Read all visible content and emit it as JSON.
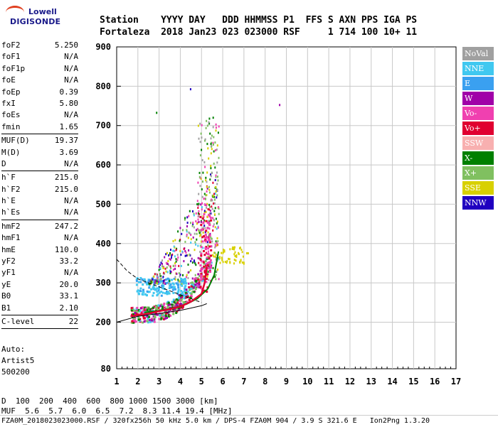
{
  "logo": {
    "brand": "Lowell",
    "product": "DIGISONDE"
  },
  "header": {
    "line1": "Station    YYYY DAY   DDD HHMMSS P1  FFS S AXN PPS IGA PS",
    "line2": "Fortaleza  2018 Jan23 023 023000 RSF     1 714 100 10+ 11"
  },
  "params": {
    "group1": [
      {
        "name": "foF2",
        "value": "5.250"
      },
      {
        "name": "foF1",
        "value": "N/A"
      },
      {
        "name": "foF1p",
        "value": "N/A"
      },
      {
        "name": "foE",
        "value": "N/A"
      },
      {
        "name": "foEp",
        "value": "0.39"
      },
      {
        "name": "fxI",
        "value": "5.80"
      },
      {
        "name": "foEs",
        "value": "N/A"
      },
      {
        "name": "fmin",
        "value": "1.65"
      }
    ],
    "group2": [
      {
        "name": "MUF(D)",
        "value": "19.37"
      },
      {
        "name": "M(D)",
        "value": "3.69"
      },
      {
        "name": "D",
        "value": "N/A"
      }
    ],
    "group3": [
      {
        "name": "h`F",
        "value": "215.0"
      },
      {
        "name": "h`F2",
        "value": "215.0"
      },
      {
        "name": "h`E",
        "value": "N/A"
      },
      {
        "name": "h`Es",
        "value": "N/A"
      }
    ],
    "group4": [
      {
        "name": "hmF2",
        "value": "247.2"
      },
      {
        "name": "hmF1",
        "value": "N/A"
      },
      {
        "name": "hmE",
        "value": "110.0"
      },
      {
        "name": "yF2",
        "value": "33.2"
      },
      {
        "name": "yF1",
        "value": "N/A"
      },
      {
        "name": "yE",
        "value": "20.0"
      },
      {
        "name": "B0",
        "value": "33.1"
      },
      {
        "name": "B1",
        "value": "2.10"
      }
    ],
    "group5": [
      {
        "name": "C-level",
        "value": "22"
      }
    ]
  },
  "auto": {
    "line1": "Auto:",
    "line2": "Artist5",
    "line3": "500200"
  },
  "legend": [
    {
      "label": "NoVal",
      "color": "#a0a0a0"
    },
    {
      "label": "NNE",
      "color": "#40c8f0"
    },
    {
      "label": "E",
      "color": "#3aa0f0"
    },
    {
      "label": "W",
      "color": "#a000a8"
    },
    {
      "label": "Vo-",
      "color": "#f040b0"
    },
    {
      "label": "Vo+",
      "color": "#e00030"
    },
    {
      "label": "SSW",
      "color": "#f8b0b0"
    },
    {
      "label": "X-",
      "color": "#008000"
    },
    {
      "label": "X+",
      "color": "#80c060"
    },
    {
      "label": "SSE",
      "color": "#d8d000"
    },
    {
      "label": "NNW",
      "color": "#2000c0"
    }
  ],
  "footer": {
    "row_d_label": "D",
    "row_d_values": "  100  200  400  600  800 1000 1500 3000 [km]",
    "row_muf_label": "MUF",
    "row_muf_values": "  5.6  5.7  6.0  6.5  7.2  8.3 11.4 19.4 [MHz]",
    "status": "FZA0M_2018023023000.RSF / 320fx256h 50 kHz 5.0 km / DPS-4 FZA0M 904 / 3.9 S 321.6 E   Ion2Png 1.3.20"
  },
  "chart_data": {
    "type": "scatter",
    "x_ticks": [
      1,
      2,
      3,
      4,
      5,
      6,
      7,
      8,
      9,
      10,
      11,
      12,
      13,
      14,
      15,
      16,
      17
    ],
    "y_ticks": [
      80,
      200,
      300,
      400,
      500,
      600,
      700,
      800,
      900
    ],
    "xlim": [
      1,
      17
    ],
    "ylim": [
      80,
      900
    ],
    "grid": true,
    "legend_position": "right",
    "profile_curve": {
      "x": [
        1.0,
        2.0,
        3.0,
        4.0,
        4.5,
        5.0,
        5.25
      ],
      "y": [
        200,
        215,
        222,
        230,
        236,
        242,
        247.2
      ]
    },
    "extrapolated_dashed": {
      "x": [
        1.0,
        1.5,
        2.0,
        3.0,
        4.0,
        5.0
      ],
      "y": [
        360,
        330,
        310,
        290,
        270,
        250
      ]
    },
    "trace_o": {
      "x": [
        1.65,
        2.0,
        2.5,
        3.0,
        3.5,
        4.0,
        4.5,
        5.0,
        5.15,
        5.25
      ],
      "y": [
        215,
        218,
        222,
        228,
        233,
        240,
        252,
        272,
        300,
        340
      ]
    },
    "trace_x": {
      "x": [
        2.3,
        2.8,
        3.3,
        3.8,
        4.3,
        4.8,
        5.3,
        5.6,
        5.8
      ],
      "y": [
        225,
        228,
        232,
        238,
        246,
        260,
        285,
        320,
        380
      ]
    }
  }
}
